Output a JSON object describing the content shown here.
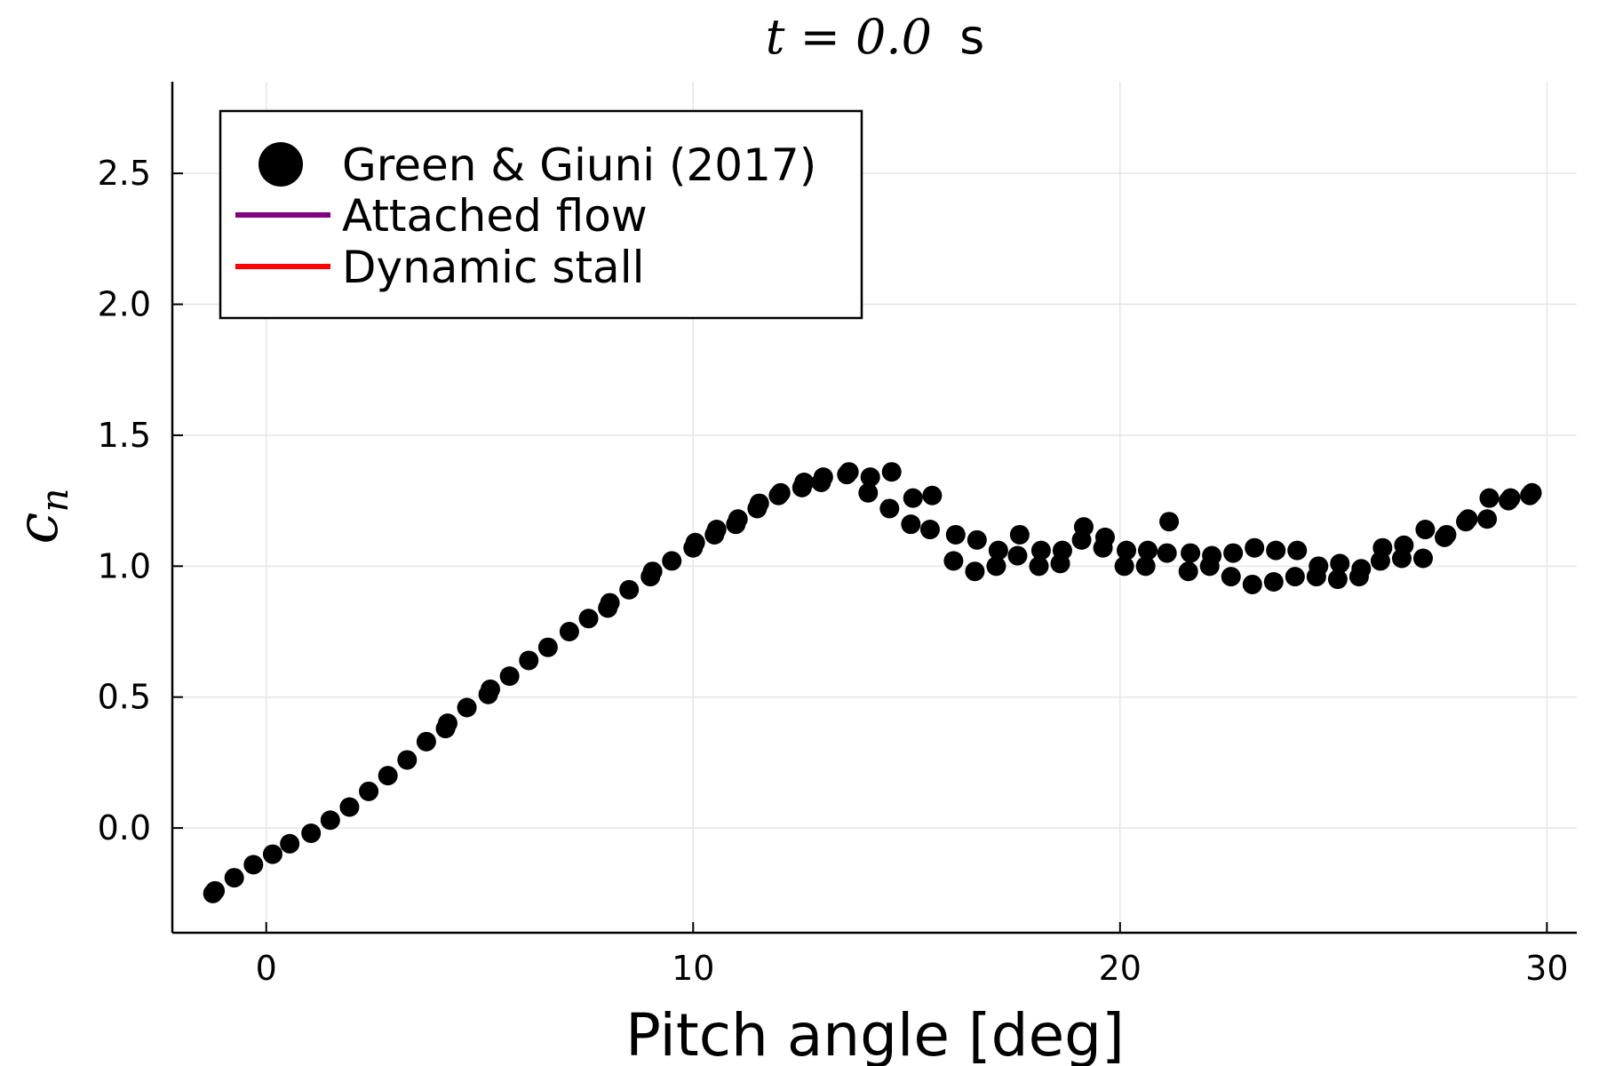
{
  "chart_data": {
    "type": "scatter",
    "title": {
      "math": "t = 0.0",
      "unit": "s"
    },
    "xlabel": "Pitch angle [deg]",
    "ylabel": "c",
    "ylabel_subscript": "n",
    "xlim": [
      -2.2,
      30.7
    ],
    "ylim": [
      -0.4,
      2.85
    ],
    "xticks": [
      0,
      10,
      20,
      30
    ],
    "yticks": [
      0.0,
      0.5,
      1.0,
      1.5,
      2.0,
      2.5
    ],
    "ytick_labels": [
      "0.0",
      "0.5",
      "1.0",
      "1.5",
      "2.0",
      "2.5"
    ],
    "grid": true,
    "legend_position": "top-left",
    "series": [
      {
        "name": "Green & Giuni (2017)",
        "kind": "scatter",
        "color": "#000000",
        "x": [
          -1.2,
          -1.25,
          -0.75,
          -0.3,
          0.15,
          0.55,
          1.05,
          1.5,
          1.95,
          2.4,
          2.85,
          3.3,
          3.75,
          4.2,
          4.25,
          4.7,
          5.2,
          5.25,
          5.7,
          6.15,
          6.6,
          7.1,
          7.55,
          8.0,
          8.05,
          8.5,
          9.0,
          9.05,
          9.5,
          10.0,
          10.05,
          10.5,
          10.55,
          11.0,
          11.05,
          11.5,
          11.55,
          12.0,
          12.05,
          12.55,
          12.6,
          13.0,
          13.05,
          13.6,
          13.65,
          14.1,
          14.15,
          14.6,
          14.65,
          15.1,
          15.15,
          15.55,
          15.6,
          16.1,
          16.15,
          16.6,
          16.65,
          17.1,
          17.15,
          17.6,
          17.65,
          18.1,
          18.15,
          18.6,
          18.65,
          19.1,
          19.15,
          19.6,
          19.65,
          20.1,
          20.15,
          20.6,
          20.65,
          21.1,
          21.15,
          21.6,
          21.65,
          22.1,
          22.15,
          22.6,
          22.65,
          23.1,
          23.15,
          23.6,
          23.65,
          24.1,
          24.15,
          24.6,
          24.65,
          25.1,
          25.15,
          25.6,
          25.65,
          26.1,
          26.15,
          26.6,
          26.65,
          27.1,
          27.15,
          27.6,
          27.65,
          28.1,
          28.15,
          28.6,
          28.65,
          29.1,
          29.15,
          29.6,
          29.65
        ],
        "y": [
          -0.24,
          -0.25,
          -0.19,
          -0.14,
          -0.1,
          -0.06,
          -0.02,
          0.03,
          0.08,
          0.14,
          0.2,
          0.26,
          0.33,
          0.38,
          0.4,
          0.46,
          0.51,
          0.53,
          0.58,
          0.64,
          0.69,
          0.75,
          0.8,
          0.84,
          0.86,
          0.91,
          0.96,
          0.98,
          1.02,
          1.07,
          1.09,
          1.12,
          1.14,
          1.16,
          1.18,
          1.22,
          1.24,
          1.27,
          1.28,
          1.3,
          1.32,
          1.32,
          1.34,
          1.35,
          1.36,
          1.28,
          1.34,
          1.22,
          1.36,
          1.16,
          1.26,
          1.14,
          1.27,
          1.02,
          1.12,
          0.98,
          1.1,
          1.0,
          1.06,
          1.04,
          1.12,
          1.0,
          1.06,
          1.01,
          1.06,
          1.1,
          1.15,
          1.07,
          1.11,
          1.0,
          1.06,
          1.0,
          1.06,
          1.05,
          1.17,
          0.98,
          1.05,
          1.0,
          1.04,
          0.96,
          1.05,
          0.93,
          1.07,
          0.94,
          1.06,
          0.96,
          1.06,
          0.96,
          1.0,
          0.95,
          1.01,
          0.96,
          0.99,
          1.02,
          1.07,
          1.03,
          1.08,
          1.03,
          1.14,
          1.11,
          1.12,
          1.17,
          1.18,
          1.18,
          1.26,
          1.25,
          1.26,
          1.27,
          1.28
        ]
      },
      {
        "name": "Attached flow",
        "kind": "line",
        "color": "#800080",
        "x": [],
        "y": []
      },
      {
        "name": "Dynamic stall",
        "kind": "line",
        "color": "#ff0000",
        "x": [],
        "y": []
      }
    ]
  }
}
